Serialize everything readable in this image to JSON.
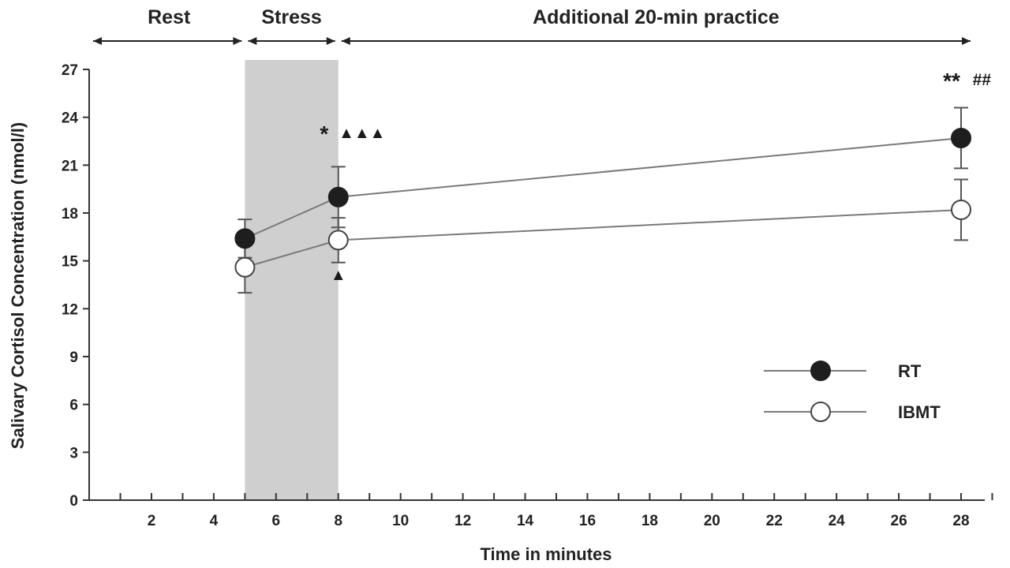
{
  "chart_data": {
    "type": "line",
    "xlabel": "Time in minutes",
    "ylabel": "Salivary Cortisol Concentration (nmol/l)",
    "xlim": [
      0,
      30
    ],
    "ylim": [
      0,
      27
    ],
    "x_ticks": [
      2,
      4,
      6,
      8,
      10,
      12,
      14,
      16,
      18,
      20,
      22,
      24,
      26,
      28
    ],
    "y_ticks": [
      0,
      3,
      6,
      9,
      12,
      15,
      18,
      21,
      24,
      27
    ],
    "x_minor_ticks": [
      1,
      3,
      5,
      7,
      9,
      11,
      13,
      15,
      17,
      19,
      21,
      23,
      25,
      27,
      29
    ],
    "shaded_region": {
      "x_start": 5,
      "x_end": 8,
      "color": "#cfcfcf"
    },
    "phases": [
      {
        "label": "Rest",
        "start": 0,
        "end": 5
      },
      {
        "label": "Stress",
        "start": 5,
        "end": 8
      },
      {
        "label": "Additional 20-min practice",
        "start": 8,
        "end": 28
      }
    ],
    "series": [
      {
        "name": "RT",
        "marker": "filled-circle",
        "x": [
          5,
          8,
          28
        ],
        "y": [
          16.4,
          19.0,
          22.7
        ],
        "error": [
          1.2,
          1.9,
          1.9
        ]
      },
      {
        "name": "IBMT",
        "marker": "open-circle",
        "x": [
          5,
          8,
          28
        ],
        "y": [
          14.6,
          16.3,
          18.2
        ],
        "error": [
          1.6,
          1.4,
          1.9
        ]
      }
    ],
    "annotations": [
      {
        "text": "*",
        "x": 8,
        "y": 22.5,
        "style": "star"
      },
      {
        "text": "▲▲▲",
        "x": 8,
        "y": 22.5,
        "style": "triangles"
      },
      {
        "text": "▲",
        "x": 8,
        "y": 14.2,
        "style": "triangle"
      },
      {
        "text": "**",
        "x": 28,
        "y": 25.9,
        "style": "star"
      },
      {
        "text": "##",
        "x": 28,
        "y": 25.9,
        "style": "hash"
      }
    ],
    "legend": {
      "position": "bottom-right"
    },
    "grid": false,
    "colors": {
      "line": "#7a7a7a",
      "axis": "#333333",
      "marker_fill": "#1e1e1e",
      "shade": "#cfcfcf"
    }
  }
}
